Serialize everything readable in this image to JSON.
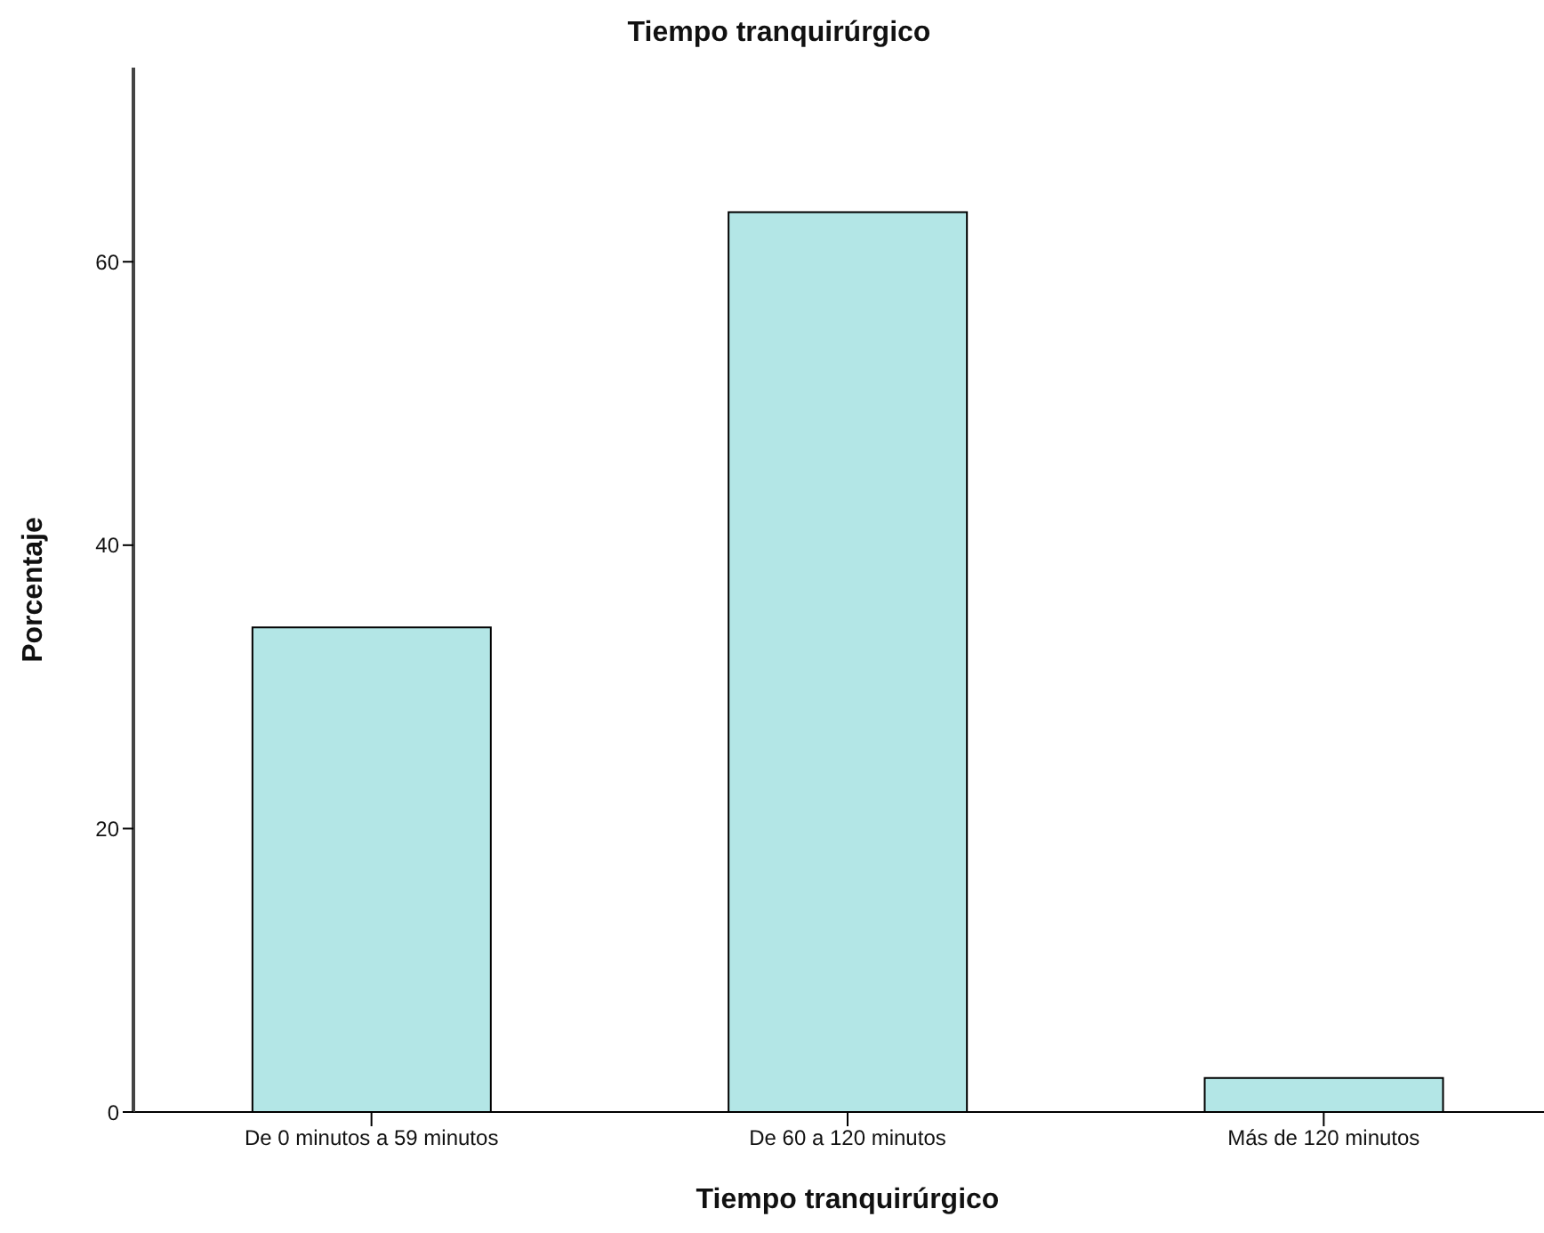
{
  "chart_data": {
    "type": "bar",
    "title": "Tiempo tranquirúrgico",
    "xlabel": "Tiempo tranquirúrgico",
    "ylabel": "Porcentaje",
    "categories": [
      "De 0 minutos a 59 minutos",
      "De 60 a 120 minutos",
      "Más de 120 minutos"
    ],
    "values": [
      34.2,
      63.5,
      2.4
    ],
    "color": "#b3e6e6",
    "ylim": [
      0,
      73.7
    ],
    "yticks": [
      0,
      20,
      40,
      60
    ],
    "grid": false,
    "legend": false
  }
}
